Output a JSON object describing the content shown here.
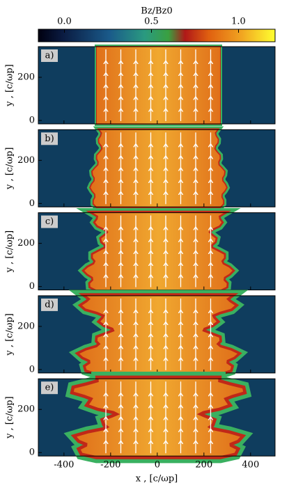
{
  "chart_data": [
    {
      "type": "colorbar",
      "title": "Bz/Bz0",
      "xlim": [
        -0.15,
        1.21
      ],
      "xticks": [
        {
          "value": 0,
          "label": "0.0"
        },
        {
          "value": 0.5,
          "label": "0.5"
        },
        {
          "value": 1,
          "label": "1.0"
        }
      ]
    },
    {
      "type": "field",
      "label": "a)",
      "ylabel": "y , [c/ωp]",
      "xlim": [
        -510,
        505
      ],
      "ylim": [
        -16,
        342
      ],
      "yticks": [
        0,
        200
      ],
      "xticks": [
        -400,
        -200,
        0,
        200,
        400
      ]
    },
    {
      "type": "field",
      "label": "b)",
      "ylabel": "y , [c/ωp]",
      "xlim": [
        -510,
        505
      ],
      "ylim": [
        -16,
        342
      ],
      "yticks": [
        0,
        200
      ],
      "xticks": [
        -400,
        -200,
        0,
        200,
        400
      ]
    },
    {
      "type": "field",
      "label": "c)",
      "ylabel": "y , [c/ωp]",
      "xlim": [
        -510,
        505
      ],
      "ylim": [
        -16,
        342
      ],
      "yticks": [
        0,
        200
      ],
      "xticks": [
        -400,
        -200,
        0,
        200,
        400
      ]
    },
    {
      "type": "field",
      "label": "d)",
      "ylabel": "y , [c/ωp]",
      "xlim": [
        -510,
        505
      ],
      "ylim": [
        -16,
        342
      ],
      "yticks": [
        0,
        200
      ],
      "xticks": [
        -400,
        -200,
        0,
        200,
        400
      ]
    },
    {
      "type": "field",
      "label": "e)",
      "ylabel": "y , [c/ωp]",
      "xlabel": "x , [c/ωp]",
      "xlim": [
        -510,
        505
      ],
      "ylim": [
        -16,
        342
      ],
      "yticks": [
        0,
        200
      ],
      "xticks": [
        -400,
        -200,
        0,
        200,
        400
      ]
    }
  ]
}
